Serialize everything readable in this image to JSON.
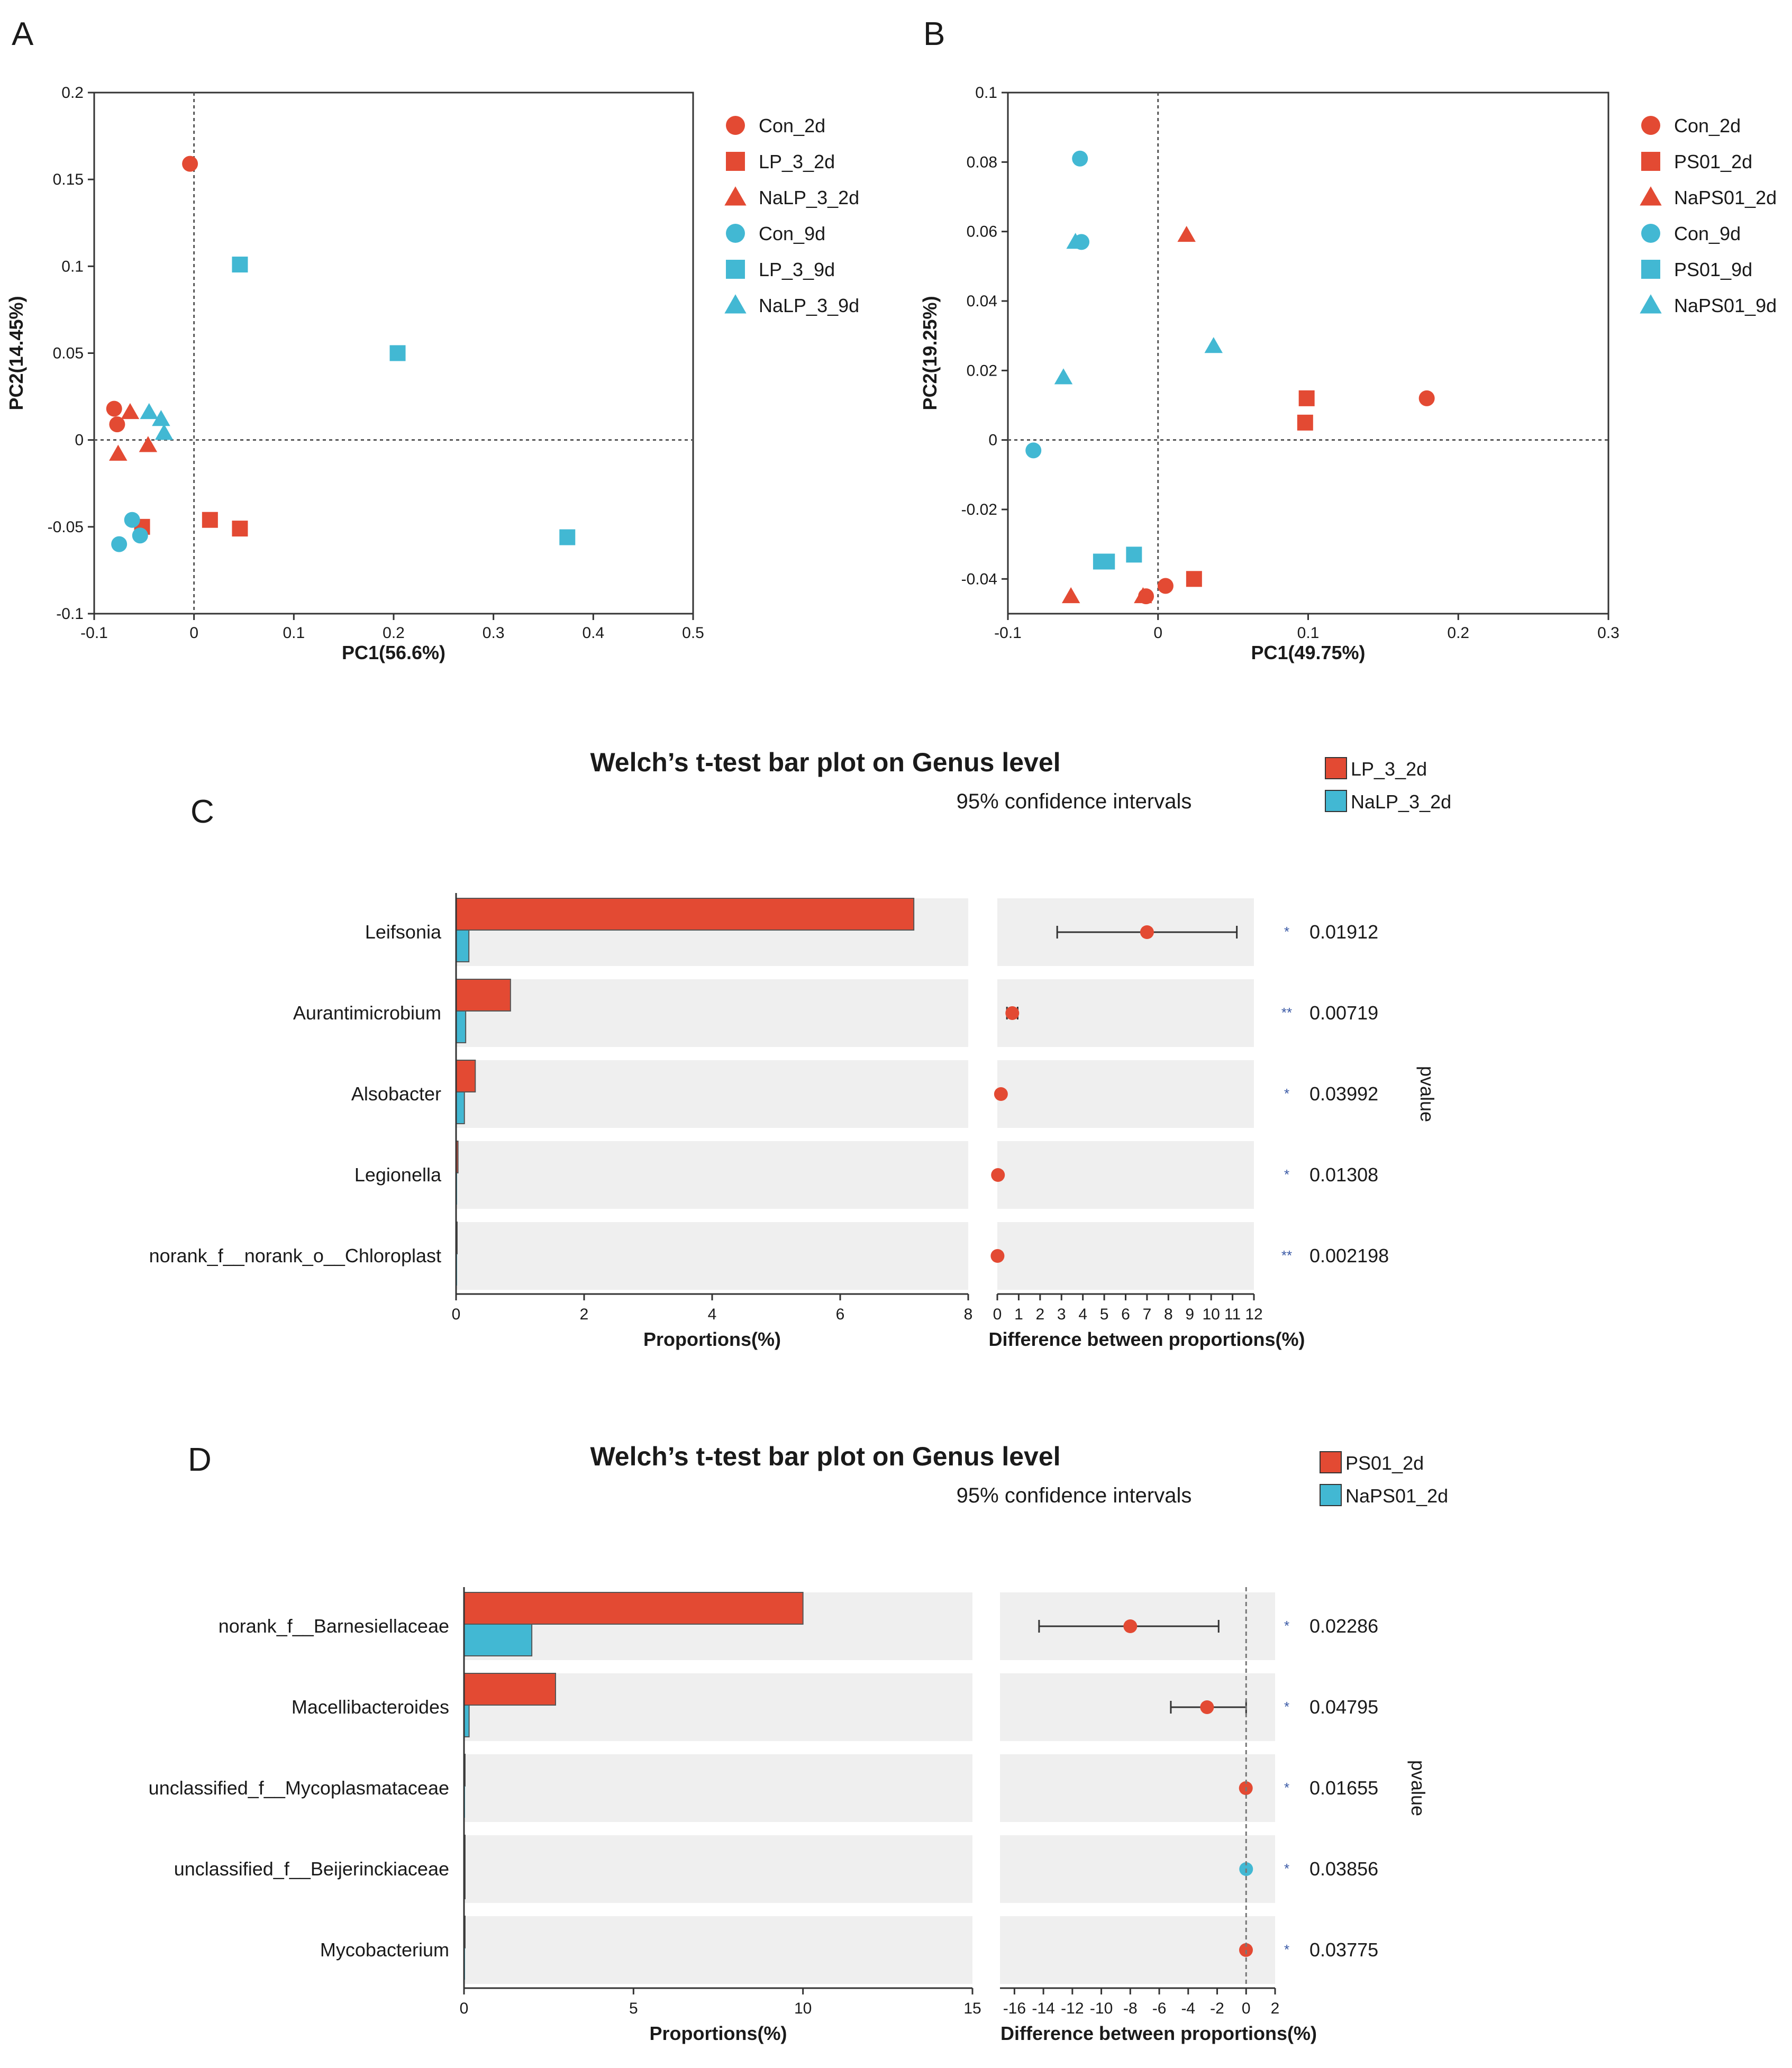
{
  "colors": {
    "red": "#e34a33",
    "blue": "#42b8d3",
    "grid_bg": "#efefef",
    "axis": "#333333"
  },
  "chart_data": [
    {
      "panel": "A",
      "type": "scatter",
      "xlabel": "PC1(56.6%)",
      "ylabel": "PC2(14.45%)",
      "xlim": [
        -0.1,
        0.5
      ],
      "ylim": [
        -0.1,
        0.2
      ],
      "xticks": [
        "-0.1",
        "0",
        "0.1",
        "0.2",
        "0.3",
        "0.4",
        "0.5"
      ],
      "yticks": [
        "-0.1",
        "-0.05",
        "0",
        "0.05",
        "0.1",
        "0.15",
        "0.2"
      ],
      "series": [
        {
          "name": "Con_2d",
          "color": "red",
          "marker": "circle",
          "points": [
            [
              -0.004,
              0.159
            ],
            [
              -0.08,
              0.018
            ],
            [
              -0.077,
              0.009
            ]
          ]
        },
        {
          "name": "LP_3_2d",
          "color": "red",
          "marker": "square",
          "points": [
            [
              -0.052,
              -0.05
            ],
            [
              0.016,
              -0.046
            ],
            [
              0.046,
              -0.051
            ]
          ]
        },
        {
          "name": "NaLP_3_2d",
          "color": "red",
          "marker": "triangle",
          "points": [
            [
              -0.064,
              0.016
            ],
            [
              -0.076,
              -0.008
            ],
            [
              -0.046,
              -0.003
            ]
          ]
        },
        {
          "name": "Con_9d",
          "color": "blue",
          "marker": "circle",
          "points": [
            [
              -0.062,
              -0.046
            ],
            [
              -0.054,
              -0.055
            ],
            [
              -0.075,
              -0.06
            ]
          ]
        },
        {
          "name": "LP_3_9d",
          "color": "blue",
          "marker": "square",
          "points": [
            [
              0.046,
              0.101
            ],
            [
              0.204,
              0.05
            ],
            [
              0.374,
              -0.056
            ]
          ]
        },
        {
          "name": "NaLP_3_9d",
          "color": "blue",
          "marker": "triangle",
          "points": [
            [
              -0.045,
              0.016
            ],
            [
              -0.033,
              0.012
            ],
            [
              -0.03,
              0.004
            ]
          ]
        }
      ]
    },
    {
      "panel": "B",
      "type": "scatter",
      "xlabel": "PC1(49.75%)",
      "ylabel": "PC2(19.25%)",
      "xlim": [
        -0.1,
        0.3
      ],
      "ylim": [
        -0.05,
        0.1
      ],
      "xticks": [
        "-0.1",
        "0",
        "0.1",
        "0.2",
        "0.3"
      ],
      "yticks": [
        "-0.04",
        "-0.02",
        "0",
        "0.02",
        "0.04",
        "0.06",
        "0.08",
        "0.1"
      ],
      "series": [
        {
          "name": "Con_2d",
          "color": "red",
          "marker": "circle",
          "points": [
            [
              0.179,
              0.012
            ],
            [
              0.005,
              -0.042
            ],
            [
              -0.008,
              -0.045
            ]
          ]
        },
        {
          "name": "PS01_2d",
          "color": "red",
          "marker": "square",
          "points": [
            [
              0.099,
              0.012
            ],
            [
              0.098,
              0.005
            ],
            [
              0.024,
              -0.04
            ]
          ]
        },
        {
          "name": "NaPS01_2d",
          "color": "red",
          "marker": "triangle",
          "points": [
            [
              0.019,
              0.059
            ],
            [
              -0.058,
              -0.045
            ],
            [
              -0.01,
              -0.045
            ]
          ]
        },
        {
          "name": "Con_9d",
          "color": "blue",
          "marker": "circle",
          "points": [
            [
              -0.052,
              0.081
            ],
            [
              -0.051,
              0.057
            ],
            [
              -0.083,
              -0.003
            ]
          ]
        },
        {
          "name": "PS01_9d",
          "color": "blue",
          "marker": "square",
          "points": [
            [
              -0.016,
              -0.033
            ],
            [
              -0.034,
              -0.035
            ],
            [
              -0.038,
              -0.035
            ]
          ]
        },
        {
          "name": "NaPS01_9d",
          "color": "blue",
          "marker": "triangle",
          "points": [
            [
              -0.055,
              0.057
            ],
            [
              -0.063,
              0.018
            ],
            [
              0.037,
              0.027
            ]
          ]
        }
      ]
    },
    {
      "panel": "C",
      "type": "bar",
      "title": "Welch’s t-test bar plot on Genus level",
      "subtitle": "95% confidence intervals",
      "legend": [
        {
          "name": "LP_3_2d",
          "color": "red"
        },
        {
          "name": "NaLP_3_2d",
          "color": "blue"
        }
      ],
      "categories": [
        "Leifsonia",
        "Aurantimicrobium",
        "Alsobacter",
        "Legionella",
        "norank_f__norank_o__Chloroplast"
      ],
      "series": [
        {
          "name": "LP_3_2d",
          "color": "red",
          "values": [
            7.15,
            0.85,
            0.3,
            0.03,
            0.01
          ]
        },
        {
          "name": "NaLP_3_2d",
          "color": "blue",
          "values": [
            0.2,
            0.15,
            0.13,
            0.0,
            0.0
          ]
        }
      ],
      "xlabel": "Proportions(%)",
      "xlim": [
        0,
        8
      ],
      "xticks": [
        "0",
        "2",
        "4",
        "6",
        "8"
      ],
      "diff": {
        "xlabel": "Difference between proportions(%)",
        "xlim": [
          0,
          12
        ],
        "xticks": [
          "0",
          "1",
          "2",
          "3",
          "4",
          "5",
          "6",
          "7",
          "8",
          "9",
          "10",
          "11",
          "12"
        ],
        "estimates": [
          7.0,
          0.7,
          0.17,
          0.03,
          0.01
        ],
        "ci_low": [
          2.8,
          0.45,
          0.12,
          0.0,
          0.0
        ],
        "ci_high": [
          11.2,
          0.95,
          0.22,
          0.06,
          0.02
        ],
        "point_color": [
          "red",
          "red",
          "red",
          "red",
          "red"
        ]
      },
      "pvalue_label": "pvalue",
      "significance": [
        "*",
        "**",
        "*",
        "*",
        "**"
      ],
      "pvalues": [
        "0.01912",
        "0.00719",
        "0.03992",
        "0.01308",
        "0.002198"
      ]
    },
    {
      "panel": "D",
      "type": "bar",
      "title": "Welch’s t-test bar plot on Genus level",
      "subtitle": "95% confidence intervals",
      "legend": [
        {
          "name": "PS01_2d",
          "color": "red"
        },
        {
          "name": "NaPS01_2d",
          "color": "blue"
        }
      ],
      "categories": [
        "norank_f__Barnesiellaceae",
        "Macellibacteroides",
        "unclassified_f__Mycoplasmataceae",
        "unclassified_f__Beijerinckiaceae",
        "Mycobacterium"
      ],
      "series": [
        {
          "name": "PS01_2d",
          "color": "red",
          "values": [
            10.0,
            2.7,
            0.02,
            0.01,
            0.01
          ]
        },
        {
          "name": "NaPS01_2d",
          "color": "blue",
          "values": [
            2.0,
            0.15,
            0.0,
            0.02,
            0.0
          ]
        }
      ],
      "xlabel": "Proportions(%)",
      "xlim": [
        0,
        15
      ],
      "xticks": [
        "0",
        "5",
        "10",
        "15"
      ],
      "diff": {
        "xlabel": "Difference between proportions(%)",
        "xlim": [
          -17,
          2
        ],
        "xticks": [
          "-16",
          "-14",
          "-12",
          "-10",
          "-8",
          "-6",
          "-4",
          "-2",
          "0",
          "2"
        ],
        "tickvals": [
          -16,
          -14,
          -12,
          -10,
          -8,
          -6,
          -4,
          -2,
          0,
          2
        ],
        "dashed_zero": true,
        "estimates": [
          -8.0,
          -2.7,
          -0.02,
          0.0,
          -0.01
        ],
        "ci_low": [
          -14.3,
          -5.2,
          -0.05,
          -0.03,
          -0.03
        ],
        "ci_high": [
          -1.9,
          0.0,
          0.01,
          0.03,
          0.01
        ],
        "point_color": [
          "red",
          "red",
          "red",
          "blue",
          "red"
        ]
      },
      "pvalue_label": "pvalue",
      "significance": [
        "*",
        "*",
        "*",
        "*",
        "*"
      ],
      "pvalues": [
        "0.02286",
        "0.04795",
        "0.01655",
        "0.03856",
        "0.03775"
      ]
    }
  ]
}
